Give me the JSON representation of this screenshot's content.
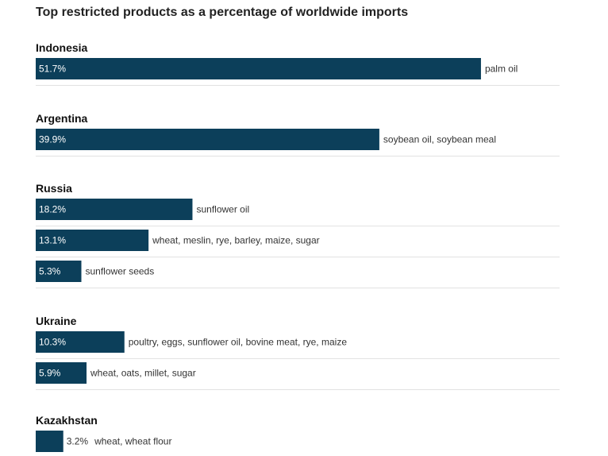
{
  "title": "Top restricted products as a percentage of worldwide imports",
  "colors": {
    "bar": "#0c3f5a",
    "text": "#333333",
    "separator": "#e2e2e2"
  },
  "chart_data": {
    "type": "bar",
    "orientation": "horizontal",
    "title": "Top restricted products as a percentage of worldwide imports",
    "xlim": [
      0,
      60
    ],
    "unit": "%",
    "groups": [
      {
        "country": "Indonesia",
        "items": [
          {
            "value": 51.7,
            "label": "51.7%",
            "products": "palm oil"
          }
        ]
      },
      {
        "country": "Argentina",
        "items": [
          {
            "value": 39.9,
            "label": "39.9%",
            "products": "soybean oil, soybean meal"
          }
        ]
      },
      {
        "country": "Russia",
        "items": [
          {
            "value": 18.2,
            "label": "18.2%",
            "products": "sunflower oil"
          },
          {
            "value": 13.1,
            "label": "13.1%",
            "products": "wheat, meslin, rye, barley, maize, sugar"
          },
          {
            "value": 5.3,
            "label": "5.3%",
            "products": "sunflower seeds"
          }
        ]
      },
      {
        "country": "Ukraine",
        "items": [
          {
            "value": 10.3,
            "label": "10.3%",
            "products": "poultry, eggs, sunflower oil, bovine meat, rye, maize"
          },
          {
            "value": 5.9,
            "label": "5.9%",
            "products": "wheat, oats, millet, sugar"
          }
        ]
      },
      {
        "country": "Kazakhstan",
        "items": [
          {
            "value": 3.2,
            "label": "3.2%",
            "products": "wheat, wheat flour"
          }
        ]
      }
    ]
  }
}
